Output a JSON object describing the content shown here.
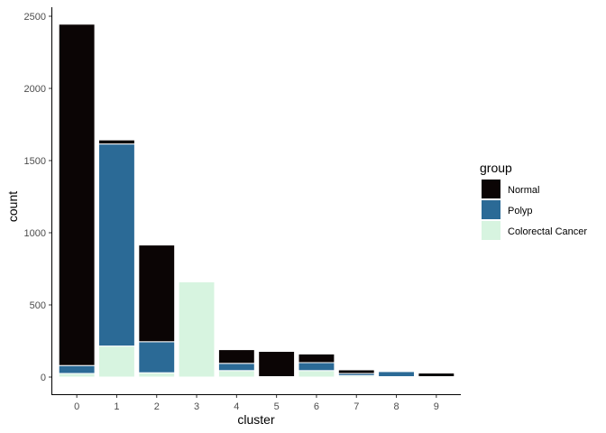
{
  "chart_data": {
    "type": "bar",
    "stacked": true,
    "categories": [
      "0",
      "1",
      "2",
      "3",
      "4",
      "5",
      "6",
      "7",
      "8",
      "9"
    ],
    "series": [
      {
        "name": "Normal",
        "color": "#0b0505",
        "values": [
          2365,
          28,
          670,
          0,
          95,
          175,
          60,
          25,
          0,
          25
        ]
      },
      {
        "name": "Polyp",
        "color": "#2b6a96",
        "values": [
          55,
          1400,
          215,
          0,
          50,
          0,
          55,
          15,
          35,
          0
        ]
      },
      {
        "name": "Colorectal Cancer",
        "color": "#d7f4e0",
        "values": [
          25,
          215,
          30,
          660,
          45,
          3,
          45,
          10,
          3,
          3
        ]
      }
    ],
    "xlabel": "cluster",
    "ylabel": "count",
    "ylim": [
      0,
      2500
    ],
    "yticks": [
      0,
      500,
      1000,
      1500,
      2000,
      2500
    ],
    "grid": false,
    "legend": {
      "title": "group",
      "position": "right"
    }
  }
}
